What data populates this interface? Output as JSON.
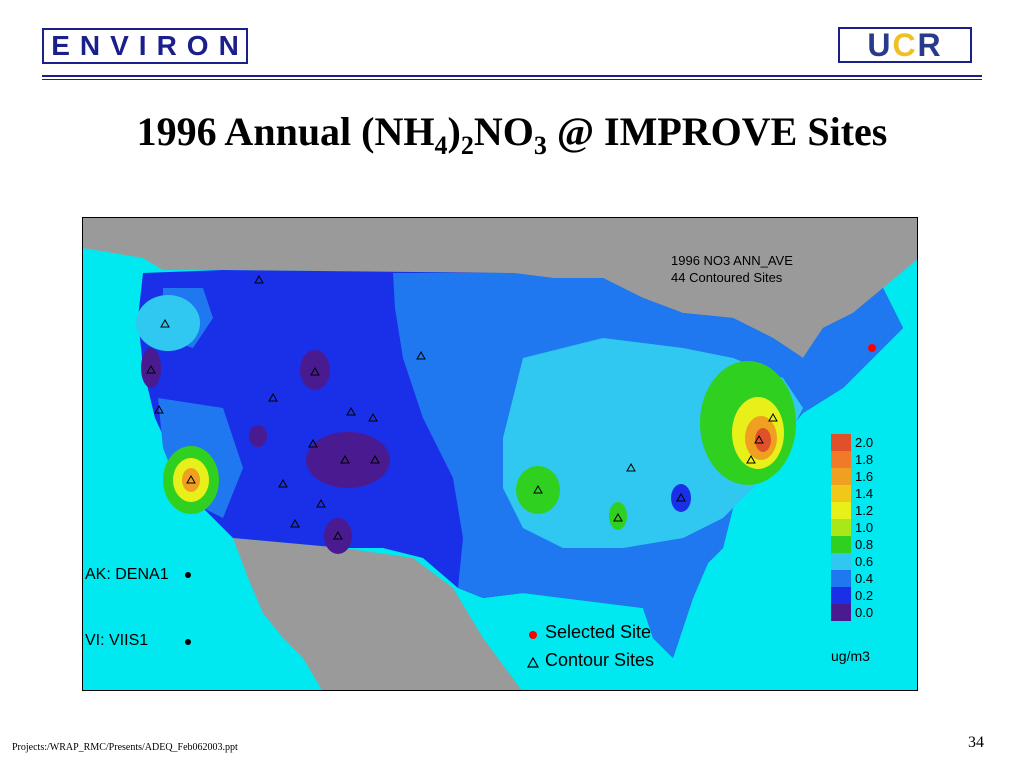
{
  "header": {
    "logo_left": "ENVIRON",
    "logo_right_a": "U",
    "logo_right_b": "C",
    "logo_right_c": "R"
  },
  "title": {
    "part1": "1996 Annual (NH",
    "sub1": "4",
    "part2": ")",
    "sub2": "2",
    "part3": "NO",
    "sub3": "3",
    "part4": " @ IMPROVE Sites"
  },
  "map": {
    "annotation_line1": "1996 NO3 ANN_AVE",
    "annotation_line2": "44 Contoured Sites",
    "ak_label": "AK: DENA1",
    "vi_label": "VI:  VIIS1",
    "legend_selected": "Selected Site",
    "legend_contour": "Contour Sites",
    "scale_unit": "ug/m3",
    "scale": [
      {
        "label": "2.0",
        "color": "#e0502a"
      },
      {
        "label": "1.8",
        "color": "#f07a28"
      },
      {
        "label": "1.6",
        "color": "#f0a020"
      },
      {
        "label": "1.4",
        "color": "#f0c818"
      },
      {
        "label": "1.2",
        "color": "#e8f01a"
      },
      {
        "label": "1.0",
        "color": "#a8e818"
      },
      {
        "label": "0.8",
        "color": "#30d020"
      },
      {
        "label": "0.6",
        "color": "#30c8f0"
      },
      {
        "label": "0.4",
        "color": "#1f78f0"
      },
      {
        "label": "0.2",
        "color": "#1a30e8"
      },
      {
        "label": "0.0",
        "color": "#4a1a90"
      }
    ],
    "colors": {
      "ocean": "#00e8f0",
      "land_outside": "#9a9a9a",
      "low": "#1a30e8",
      "mid": "#1f78f0",
      "light": "#30c8f0",
      "purple": "#4a1a90",
      "green": "#30d020",
      "selected_site": "#ff0000"
    }
  },
  "footer": {
    "path": "Projects:/WRAP_RMC/Presents/ADEQ_Feb062003.ppt",
    "page": "34"
  }
}
